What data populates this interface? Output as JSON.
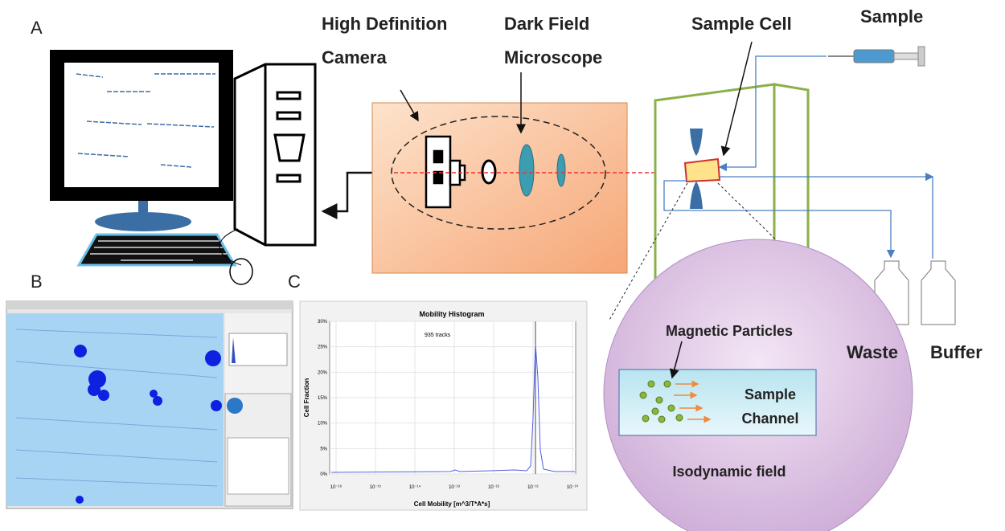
{
  "panels": {
    "a": "A",
    "b": "B",
    "c": "C"
  },
  "labels": {
    "camera": [
      "High Definition",
      "Camera"
    ],
    "microscope": [
      "Dark Field",
      "Microscope"
    ],
    "sample_cell": "Sample Cell",
    "sample": "Sample",
    "waste": "Waste",
    "buffer": "Buffer"
  },
  "inset": {
    "particles": "Magnetic Particles",
    "channel": [
      "Sample",
      "Channel"
    ],
    "field": "Isodynamic field"
  },
  "histogram": {
    "title": "Mobility Histogram",
    "note": "935 tracks",
    "y_label": "Cell Fraction",
    "x_label": "Cell Mobility [m^3/T*A*s]",
    "yticks": [
      "30%",
      "25%",
      "20%",
      "15%",
      "10%",
      "5%",
      "0%"
    ],
    "xticks": [
      "10⁻¹⁶",
      "10⁻¹⁵",
      "10⁻¹⁴",
      "10⁻¹³",
      "10⁻¹²",
      "10⁻¹¹",
      "10⁻¹⁰"
    ]
  }
}
